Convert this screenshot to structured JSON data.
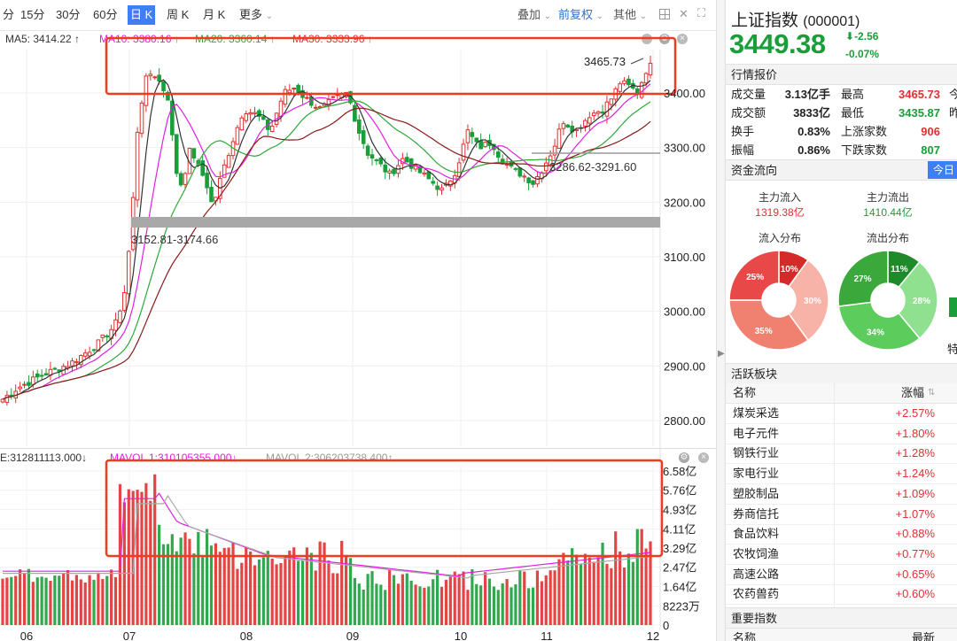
{
  "toolbar": {
    "timeframes": [
      "分",
      "15分",
      "30分",
      "60分",
      "日 K",
      "周 K",
      "月 K",
      "更多"
    ],
    "overlay_label": "叠加",
    "adjust_label": "前复权",
    "other_label": "其他"
  },
  "ma_legend": {
    "ma5": "MA5: 3414.22 ↑",
    "ma10": "MA10: 3380.16 ↑",
    "ma20": "MA20: 3360.14 ↑",
    "ma30": "MA30: 3333.96 ↑"
  },
  "vol_legend": {
    "vol": "E:312811113.000↓",
    "mavol1": "MAVOL 1:310105355.000↓",
    "mavol2": "MAVOL 2:306203738.400↑"
  },
  "colors": {
    "up": "#e03030",
    "down": "#1a9e3a",
    "ma5": "#333333",
    "ma10": "#e020e0",
    "ma20": "#2fa83a",
    "ma30": "#8b1a1a",
    "highlight_box": "#f03c1e",
    "accent": "#3e7ff5"
  },
  "chart_data": {
    "type": "candlestick",
    "price_axis_ticks": [
      "3400.00",
      "3300.00",
      "3200.00",
      "3100.00",
      "3000.00",
      "2900.00",
      "2800.00"
    ],
    "price_axis_values": [
      3400,
      3300,
      3200,
      3100,
      3000,
      2900,
      2800
    ],
    "volume_axis_ticks": [
      "6.58亿",
      "5.76亿",
      "4.93亿",
      "4.11亿",
      "3.29亿",
      "2.47亿",
      "1.64亿",
      "8223万",
      "0"
    ],
    "x_ticks": [
      "06",
      "07",
      "08",
      "09",
      "10",
      "11",
      "12"
    ],
    "annotations": {
      "high": "3465.73",
      "gap_upper": "3286.62-3291.60",
      "gap_lower": "3152.81-3174.66"
    },
    "approx_key_points": [
      {
        "x": "06",
        "close": 2850
      },
      {
        "x": "07",
        "close": 3000
      },
      {
        "x": "07",
        "close": 3440
      },
      {
        "x": "08",
        "close": 3360
      },
      {
        "x": "09",
        "close": 3370
      },
      {
        "x": "10",
        "close": 3230
      },
      {
        "x": "11",
        "close": 3250
      },
      {
        "x": "12",
        "close": 3449.38
      }
    ]
  },
  "panel": {
    "name": "上证指数",
    "code": "(000001)",
    "price": "3449.38",
    "change": "-2.56",
    "change_pct": "-0.07%",
    "quote_title": "行情报价",
    "quotes": [
      {
        "l1": "成交量",
        "v1": "3.13亿手",
        "l2": "最高",
        "v2": "3465.73",
        "l3": "今"
      },
      {
        "l1": "成交额",
        "v1": "3833亿",
        "l2": "最低",
        "v2": "3435.87",
        "l3": "昨"
      },
      {
        "l1": "换手",
        "v1": "0.83%",
        "l2": "上涨家数",
        "v2": "906",
        "l3": ""
      },
      {
        "l1": "振幅",
        "v1": "0.86%",
        "l2": "下跌家数",
        "v2": "807",
        "l3": ""
      }
    ],
    "flow_title": "资金流向",
    "today_label": "今日",
    "inflow_label": "主力流入",
    "inflow_value": "1319.38亿",
    "outflow_label": "主力流出",
    "outflow_value": "1410.44亿",
    "inflow_dist_label": "流入分布",
    "outflow_dist_label": "流出分布",
    "inflow_slices": [
      {
        "label": "10%",
        "value": 10,
        "color": "#d42a2a"
      },
      {
        "label": "30%",
        "value": 30,
        "color": "#f7b3a8"
      },
      {
        "label": "35%",
        "value": 35,
        "color": "#f08070"
      },
      {
        "label": "25%",
        "value": 25,
        "color": "#e84848"
      }
    ],
    "outflow_slices": [
      {
        "label": "11%",
        "value": 11,
        "color": "#1f8a2a"
      },
      {
        "label": "28%",
        "value": 28,
        "color": "#8fe08f"
      },
      {
        "label": "34%",
        "value": 34,
        "color": "#5ccc5c"
      },
      {
        "label": "27%",
        "value": 27,
        "color": "#3aa83a"
      }
    ],
    "partial_label": "特",
    "sector_title": "活跃板块",
    "col_name": "名称",
    "col_change": "涨幅",
    "sectors": [
      {
        "name": "煤炭采选",
        "pct": "+2.57%"
      },
      {
        "name": "电子元件",
        "pct": "+1.80%"
      },
      {
        "name": "钢铁行业",
        "pct": "+1.28%"
      },
      {
        "name": "家电行业",
        "pct": "+1.24%"
      },
      {
        "name": "塑胶制品",
        "pct": "+1.09%"
      },
      {
        "name": "券商信托",
        "pct": "+1.07%"
      },
      {
        "name": "食品饮料",
        "pct": "+0.88%"
      },
      {
        "name": "农牧饲渔",
        "pct": "+0.77%"
      },
      {
        "name": "高速公路",
        "pct": "+0.65%"
      },
      {
        "name": "农药兽药",
        "pct": "+0.60%"
      }
    ],
    "index_title": "重要指数",
    "index_col_name": "名称",
    "index_col_latest": "最新"
  }
}
